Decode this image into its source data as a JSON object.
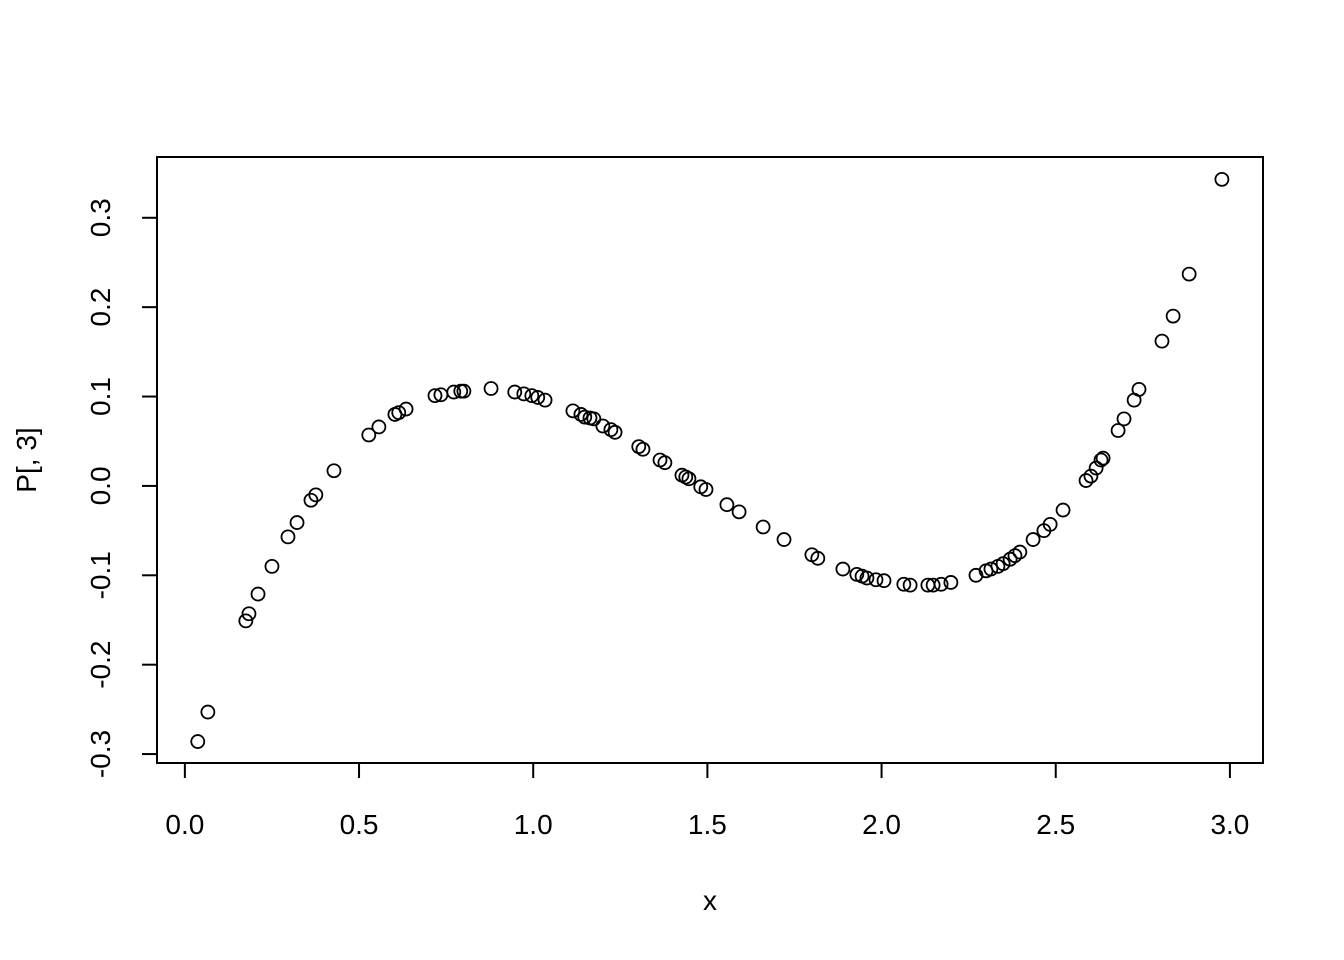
{
  "chart_data": {
    "type": "scatter",
    "xlabel": "x",
    "ylabel": "P[, 3]",
    "xlim": [
      -0.08,
      3.095
    ],
    "ylim": [
      -0.31,
      0.368
    ],
    "xticks": [
      {
        "value": 0,
        "label": "0.0"
      },
      0.5,
      {
        "value": 1,
        "label": "1.0"
      },
      1.5,
      {
        "value": 2,
        "label": "2.0"
      },
      2.5,
      {
        "value": 3,
        "label": "3.0"
      }
    ],
    "yticks": [
      -0.3,
      -0.2,
      -0.1,
      {
        "value": 0,
        "label": "0.0"
      },
      0.1,
      0.2,
      0.3
    ],
    "color": "#000000",
    "x": [
      0.037,
      0.066,
      0.175,
      0.184,
      0.21,
      0.25,
      0.296,
      0.322,
      0.362,
      0.376,
      0.428,
      0.528,
      0.557,
      0.603,
      0.614,
      0.635,
      0.718,
      0.735,
      0.772,
      0.792,
      0.801,
      0.879,
      0.947,
      0.973,
      0.996,
      1.013,
      1.034,
      1.114,
      1.137,
      1.148,
      1.163,
      1.174,
      1.2,
      1.223,
      1.235,
      1.303,
      1.315,
      1.364,
      1.378,
      1.427,
      1.438,
      1.447,
      1.481,
      1.496,
      1.556,
      1.591,
      1.66,
      1.72,
      1.8,
      1.817,
      1.889,
      1.929,
      1.944,
      1.958,
      1.984,
      2.007,
      2.064,
      2.082,
      2.133,
      2.148,
      2.171,
      2.199,
      2.271,
      2.3,
      2.314,
      2.334,
      2.349,
      2.369,
      2.383,
      2.397,
      2.435,
      2.466,
      2.484,
      2.521,
      2.587,
      2.601,
      2.616,
      2.63,
      2.636,
      2.679,
      2.696,
      2.725,
      2.739,
      2.805,
      2.837,
      2.883,
      2.977
    ],
    "values": [
      -0.286,
      -0.253,
      -0.151,
      -0.143,
      -0.121,
      -0.09,
      -0.057,
      -0.041,
      -0.016,
      -0.01,
      0.017,
      0.057,
      0.066,
      0.08,
      0.082,
      0.086,
      0.101,
      0.102,
      0.105,
      0.106,
      0.106,
      0.109,
      0.105,
      0.103,
      0.101,
      0.099,
      0.096,
      0.084,
      0.08,
      0.077,
      0.076,
      0.075,
      0.067,
      0.063,
      0.06,
      0.044,
      0.041,
      0.029,
      0.026,
      0.012,
      0.01,
      0.008,
      -0.001,
      -0.004,
      -0.021,
      -0.029,
      -0.046,
      -0.06,
      -0.077,
      -0.081,
      -0.093,
      -0.099,
      -0.101,
      -0.103,
      -0.105,
      -0.106,
      -0.11,
      -0.111,
      -0.111,
      -0.111,
      -0.11,
      -0.108,
      -0.1,
      -0.095,
      -0.093,
      -0.09,
      -0.087,
      -0.082,
      -0.078,
      -0.074,
      -0.06,
      -0.05,
      -0.043,
      -0.027,
      0.006,
      0.011,
      0.02,
      0.029,
      0.031,
      0.062,
      0.075,
      0.096,
      0.108,
      0.162,
      0.19,
      0.237,
      0.343
    ]
  }
}
